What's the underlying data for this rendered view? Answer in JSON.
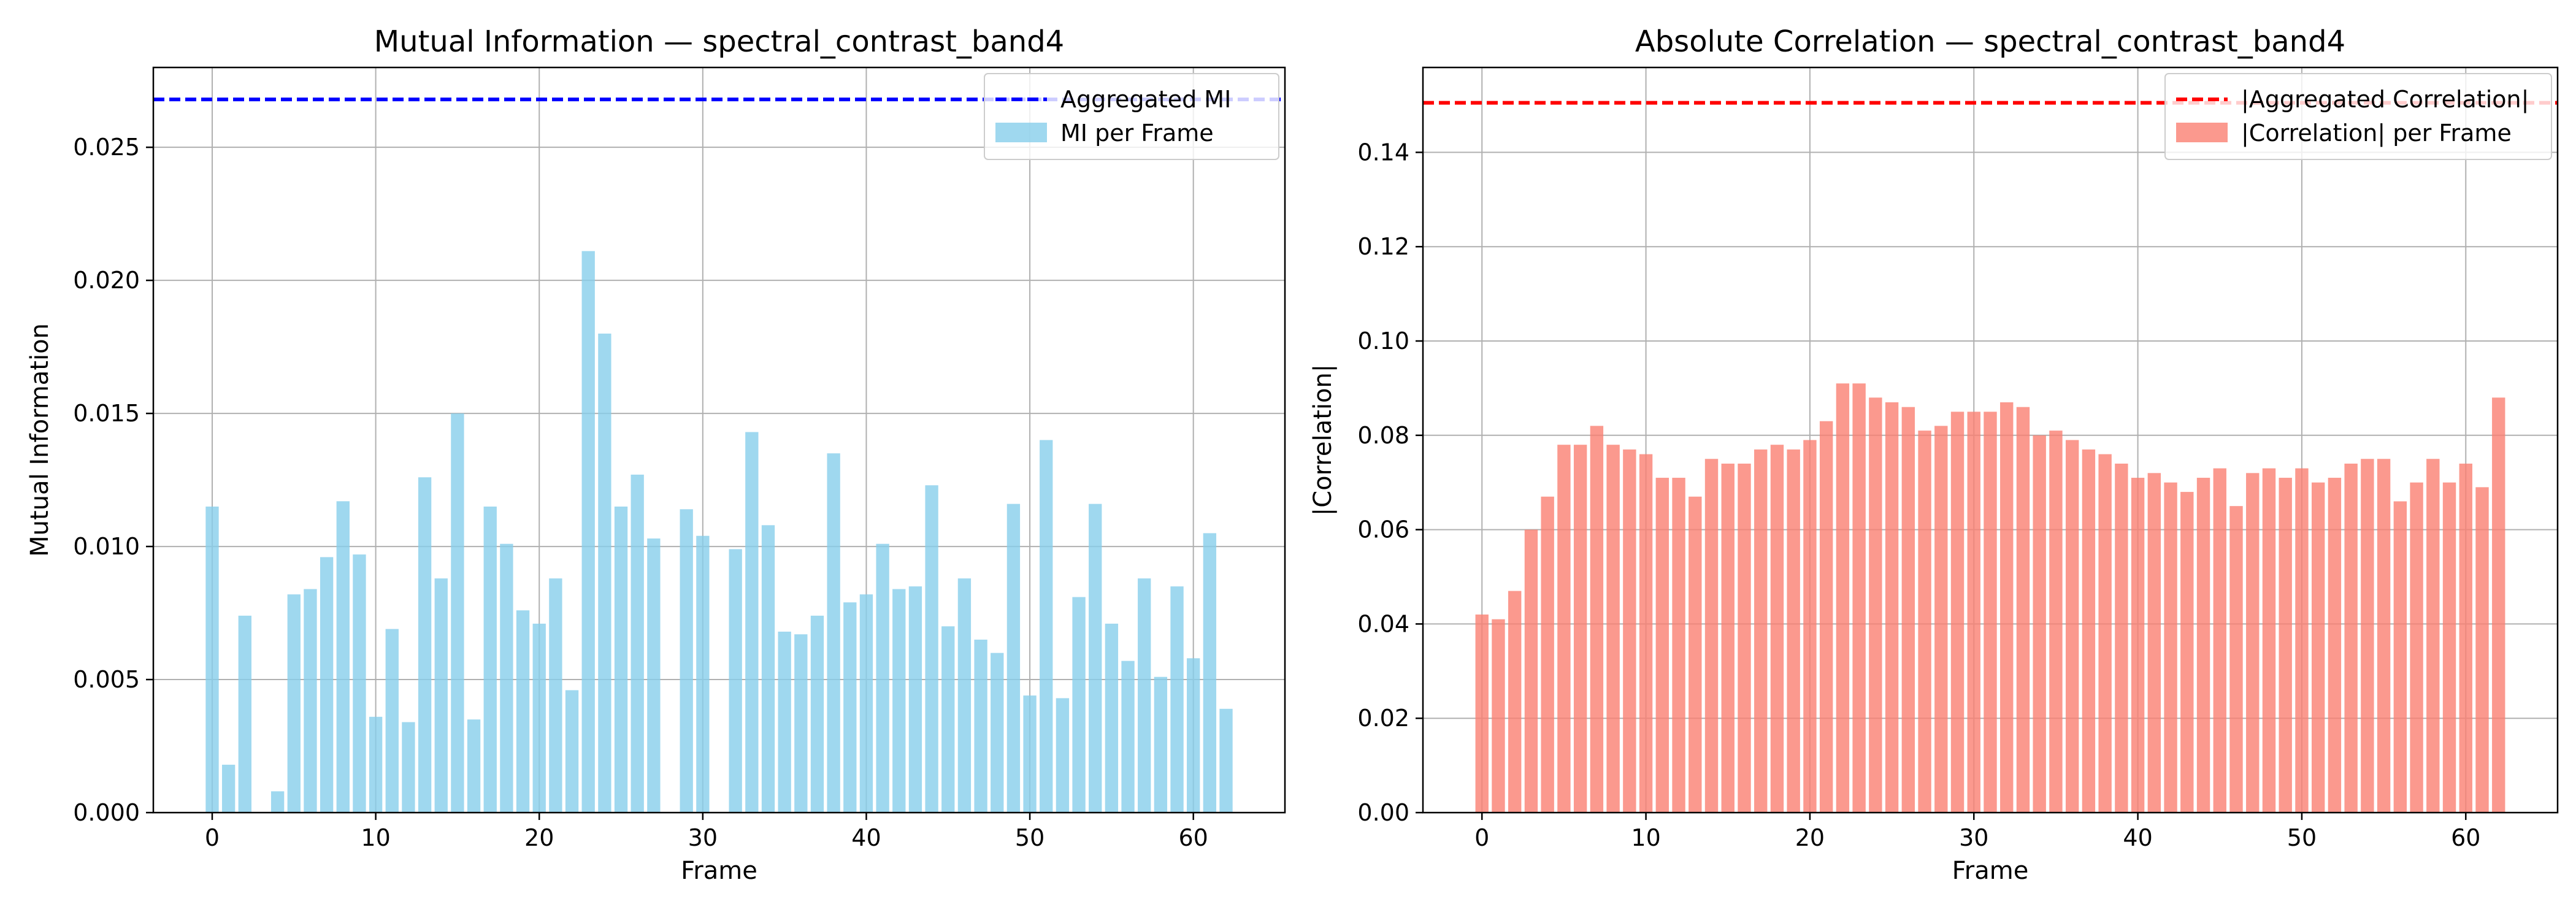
{
  "chart_data": [
    {
      "type": "bar",
      "title": "Mutual Information — spectral_contrast_band4",
      "xlabel": "Frame",
      "ylabel": "Mutual Information",
      "xlim": [
        -3.6,
        65.6
      ],
      "ylim": [
        0,
        0.028
      ],
      "xticks": [
        0,
        10,
        20,
        30,
        40,
        50,
        60
      ],
      "yticks": [
        0.0,
        0.005,
        0.01,
        0.015,
        0.02,
        0.025
      ],
      "ytick_labels": [
        "0.000",
        "0.005",
        "0.010",
        "0.015",
        "0.020",
        "0.025"
      ],
      "grid": true,
      "legend_position": "top-right",
      "bar_color": "#87CEEB",
      "line_color": "#0000FF",
      "series": [
        {
          "name": "MI per Frame",
          "x": [
            0,
            1,
            2,
            3,
            4,
            5,
            6,
            7,
            8,
            9,
            10,
            11,
            12,
            13,
            14,
            15,
            16,
            17,
            18,
            19,
            20,
            21,
            22,
            23,
            24,
            25,
            26,
            27,
            28,
            29,
            30,
            31,
            32,
            33,
            34,
            35,
            36,
            37,
            38,
            39,
            40,
            41,
            42,
            43,
            44,
            45,
            46,
            47,
            48,
            49,
            50,
            51,
            52,
            53,
            54,
            55,
            56,
            57,
            58,
            59,
            60,
            61,
            62
          ],
          "values": [
            0.0115,
            0.0018,
            0.0074,
            0.0,
            0.0008,
            0.0082,
            0.0084,
            0.0096,
            0.0117,
            0.0097,
            0.0036,
            0.0069,
            0.0034,
            0.0126,
            0.0088,
            0.015,
            0.0035,
            0.0115,
            0.0101,
            0.0076,
            0.0071,
            0.0088,
            0.0046,
            0.0211,
            0.018,
            0.0115,
            0.0127,
            0.0103,
            0.0,
            0.0114,
            0.0104,
            0.0,
            0.0099,
            0.0143,
            0.0108,
            0.0068,
            0.0067,
            0.0074,
            0.0135,
            0.0079,
            0.0082,
            0.0101,
            0.0084,
            0.0085,
            0.0123,
            0.007,
            0.0088,
            0.0065,
            0.006,
            0.0116,
            0.0044,
            0.014,
            0.0043,
            0.0081,
            0.0116,
            0.0071,
            0.0057,
            0.0088,
            0.0051,
            0.0085,
            0.0058,
            0.0105,
            0.0039
          ]
        }
      ],
      "reference_line": {
        "name": "Aggregated MI",
        "value": 0.0268
      }
    },
    {
      "type": "bar",
      "title": "Absolute Correlation — spectral_contrast_band4",
      "xlabel": "Frame",
      "ylabel": "|Correlation|",
      "xlim": [
        -3.6,
        65.6
      ],
      "ylim": [
        0,
        0.158
      ],
      "xticks": [
        0,
        10,
        20,
        30,
        40,
        50,
        60
      ],
      "yticks": [
        0.0,
        0.02,
        0.04,
        0.06,
        0.08,
        0.1,
        0.12,
        0.14
      ],
      "ytick_labels": [
        "0.00",
        "0.02",
        "0.04",
        "0.06",
        "0.08",
        "0.10",
        "0.12",
        "0.14"
      ],
      "grid": true,
      "legend_position": "top-right",
      "bar_color": "#FA8072",
      "line_color": "#FF0000",
      "series": [
        {
          "name": "|Correlation| per Frame",
          "x": [
            0,
            1,
            2,
            3,
            4,
            5,
            6,
            7,
            8,
            9,
            10,
            11,
            12,
            13,
            14,
            15,
            16,
            17,
            18,
            19,
            20,
            21,
            22,
            23,
            24,
            25,
            26,
            27,
            28,
            29,
            30,
            31,
            32,
            33,
            34,
            35,
            36,
            37,
            38,
            39,
            40,
            41,
            42,
            43,
            44,
            45,
            46,
            47,
            48,
            49,
            50,
            51,
            52,
            53,
            54,
            55,
            56,
            57,
            58,
            59,
            60,
            61,
            62
          ],
          "values": [
            0.042,
            0.041,
            0.047,
            0.06,
            0.067,
            0.078,
            0.078,
            0.082,
            0.078,
            0.077,
            0.076,
            0.071,
            0.071,
            0.067,
            0.075,
            0.074,
            0.074,
            0.077,
            0.078,
            0.077,
            0.079,
            0.083,
            0.091,
            0.091,
            0.088,
            0.087,
            0.086,
            0.081,
            0.082,
            0.085,
            0.085,
            0.085,
            0.087,
            0.086,
            0.08,
            0.081,
            0.079,
            0.077,
            0.076,
            0.074,
            0.071,
            0.072,
            0.07,
            0.068,
            0.071,
            0.073,
            0.065,
            0.072,
            0.073,
            0.071,
            0.073,
            0.07,
            0.071,
            0.074,
            0.075,
            0.075,
            0.066,
            0.07,
            0.075,
            0.07,
            0.074,
            0.069,
            0.088
          ]
        }
      ],
      "reference_line": {
        "name": "|Aggregated Correlation|",
        "value": 0.1505
      }
    }
  ]
}
